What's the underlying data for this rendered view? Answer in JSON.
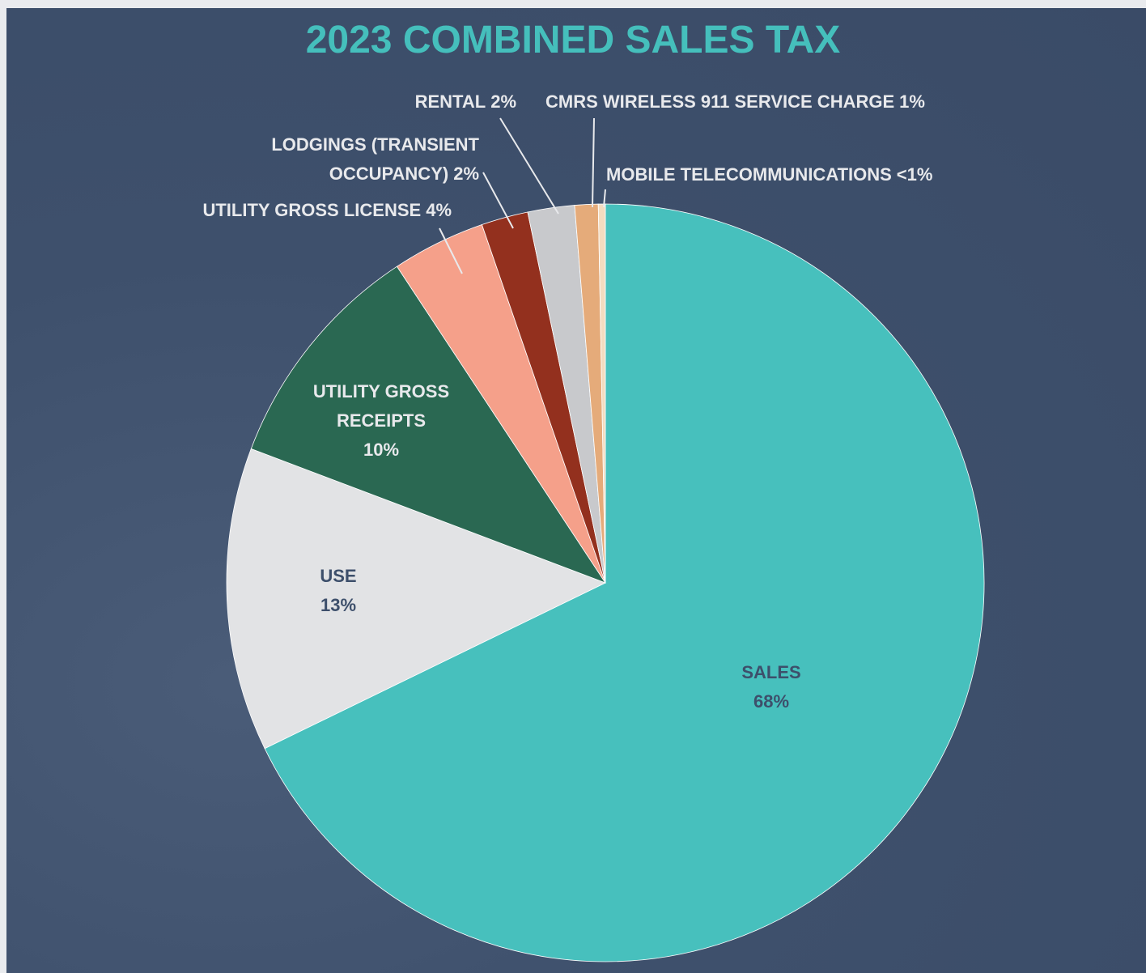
{
  "chart_data": {
    "type": "pie",
    "title": "2023 COMBINED SALES TAX",
    "categories": [
      "SALES",
      "USE",
      "UTILITY GROSS RECEIPTS",
      "UTILITY GROSS LICENSE",
      "LODGINGS (TRANSIENT OCCUPANCY)",
      "RENTAL",
      "CMRS WIRELESS 911 SERVICE CHARGE",
      "MOBILE TELECOMMUNICATIONS"
    ],
    "values": [
      68,
      13,
      10,
      4,
      2,
      2,
      1,
      0.3
    ],
    "value_labels": [
      "68%",
      "13%",
      "10%",
      "4%",
      "2%",
      "2%",
      "1%",
      "<1%"
    ],
    "colors": [
      "#47c0bd",
      "#e2e3e5",
      "#2a6852",
      "#f5a08a",
      "#93301e",
      "#c8c9cc",
      "#e5ab7a",
      "#f3dcc0"
    ]
  }
}
